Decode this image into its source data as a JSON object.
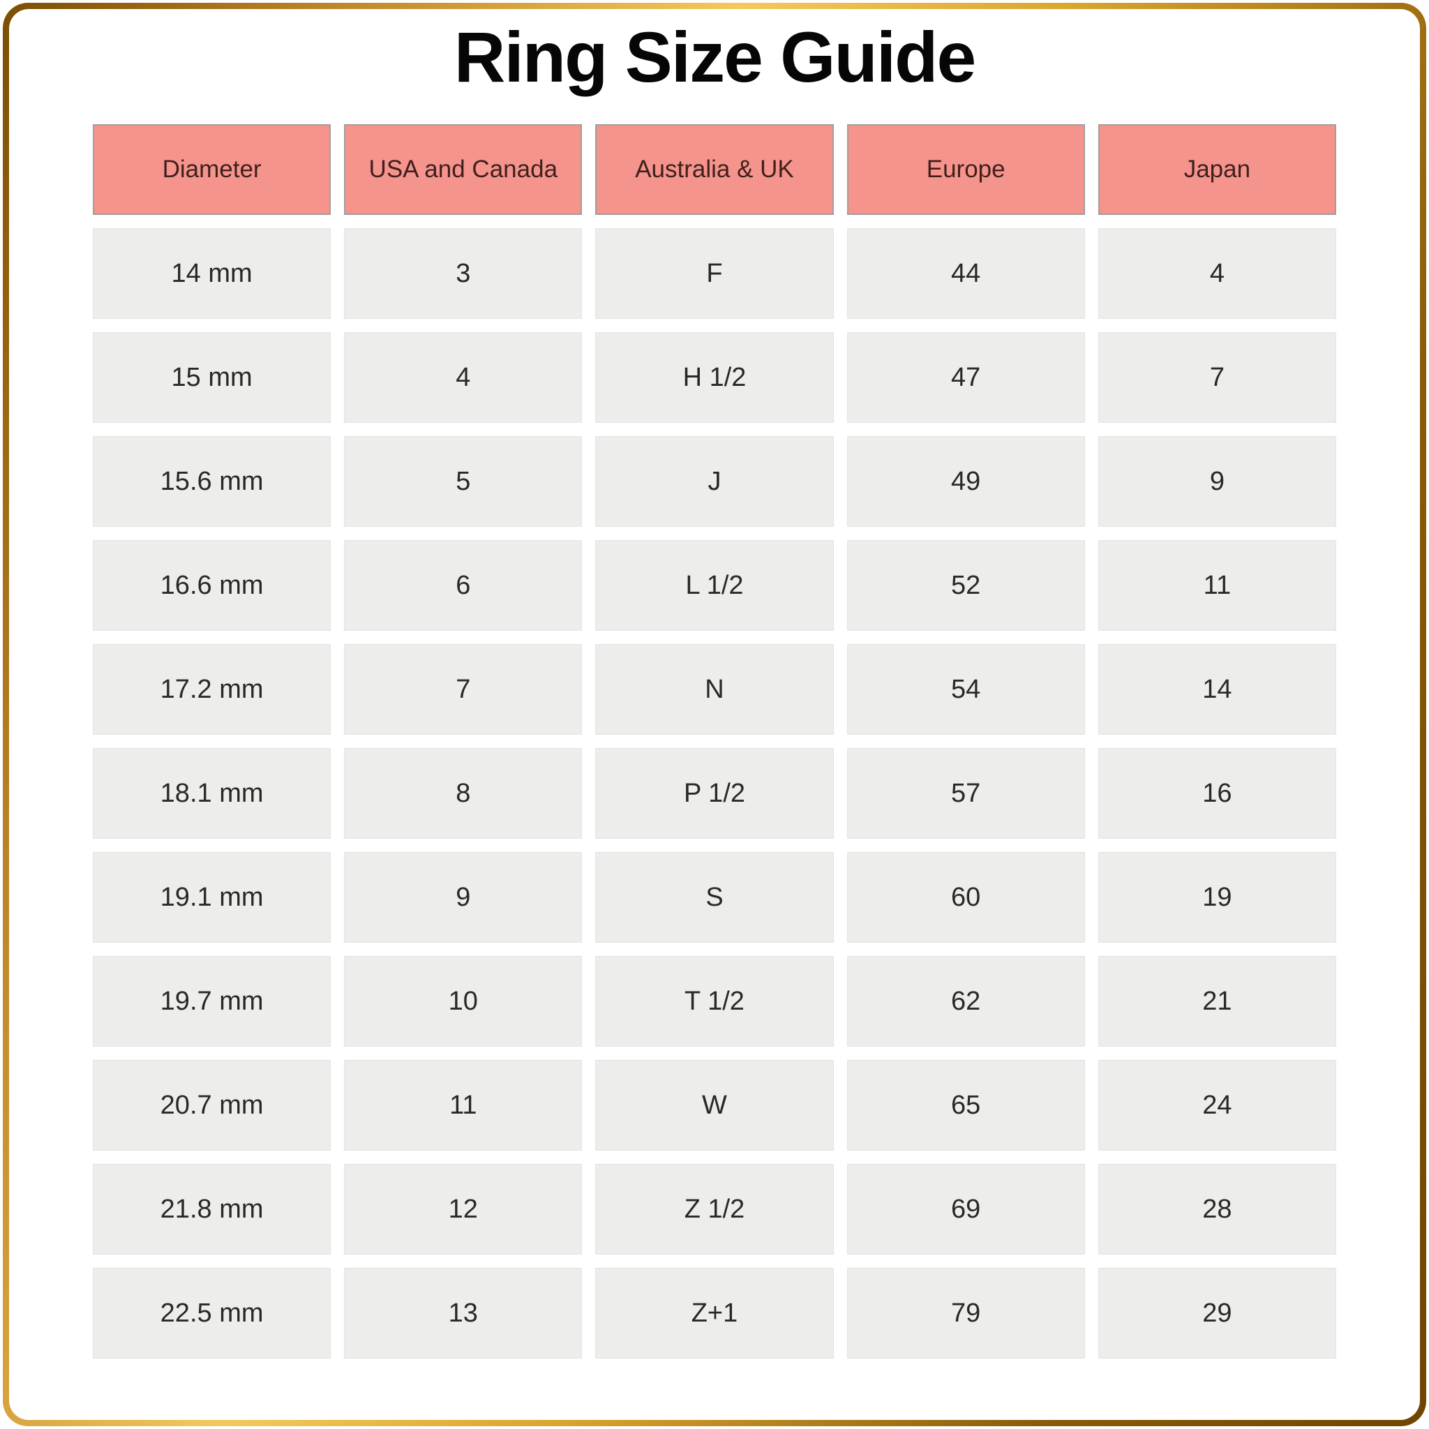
{
  "title": "Ring Size Guide",
  "colors": {
    "header_background": "#f5948c",
    "header_text": "#40201d",
    "cell_background": "#ededeb",
    "cell_text": "#282828",
    "frame_gold_dark": "#7a4f03",
    "frame_gold_light": "#f3c95c",
    "title_text": "#060606",
    "page_background": "#ffffff"
  },
  "chart_data": {
    "type": "table",
    "title": "Ring Size Guide",
    "columns": [
      "Diameter",
      "USA and Canada",
      "Australia & UK",
      "Europe",
      "Japan"
    ],
    "rows": [
      [
        "14 mm",
        "3",
        "F",
        "44",
        "4"
      ],
      [
        "15 mm",
        "4",
        "H 1/2",
        "47",
        "7"
      ],
      [
        "15.6 mm",
        "5",
        "J",
        "49",
        "9"
      ],
      [
        "16.6 mm",
        "6",
        "L 1/2",
        "52",
        "11"
      ],
      [
        "17.2 mm",
        "7",
        "N",
        "54",
        "14"
      ],
      [
        "18.1 mm",
        "8",
        "P 1/2",
        "57",
        "16"
      ],
      [
        "19.1 mm",
        "9",
        "S",
        "60",
        "19"
      ],
      [
        "19.7 mm",
        "10",
        "T 1/2",
        "62",
        "21"
      ],
      [
        "20.7 mm",
        "11",
        "W",
        "65",
        "24"
      ],
      [
        "21.8 mm",
        "12",
        "Z 1/2",
        "69",
        "28"
      ],
      [
        "22.5 mm",
        "13",
        "Z+1",
        "79",
        "29"
      ]
    ]
  }
}
